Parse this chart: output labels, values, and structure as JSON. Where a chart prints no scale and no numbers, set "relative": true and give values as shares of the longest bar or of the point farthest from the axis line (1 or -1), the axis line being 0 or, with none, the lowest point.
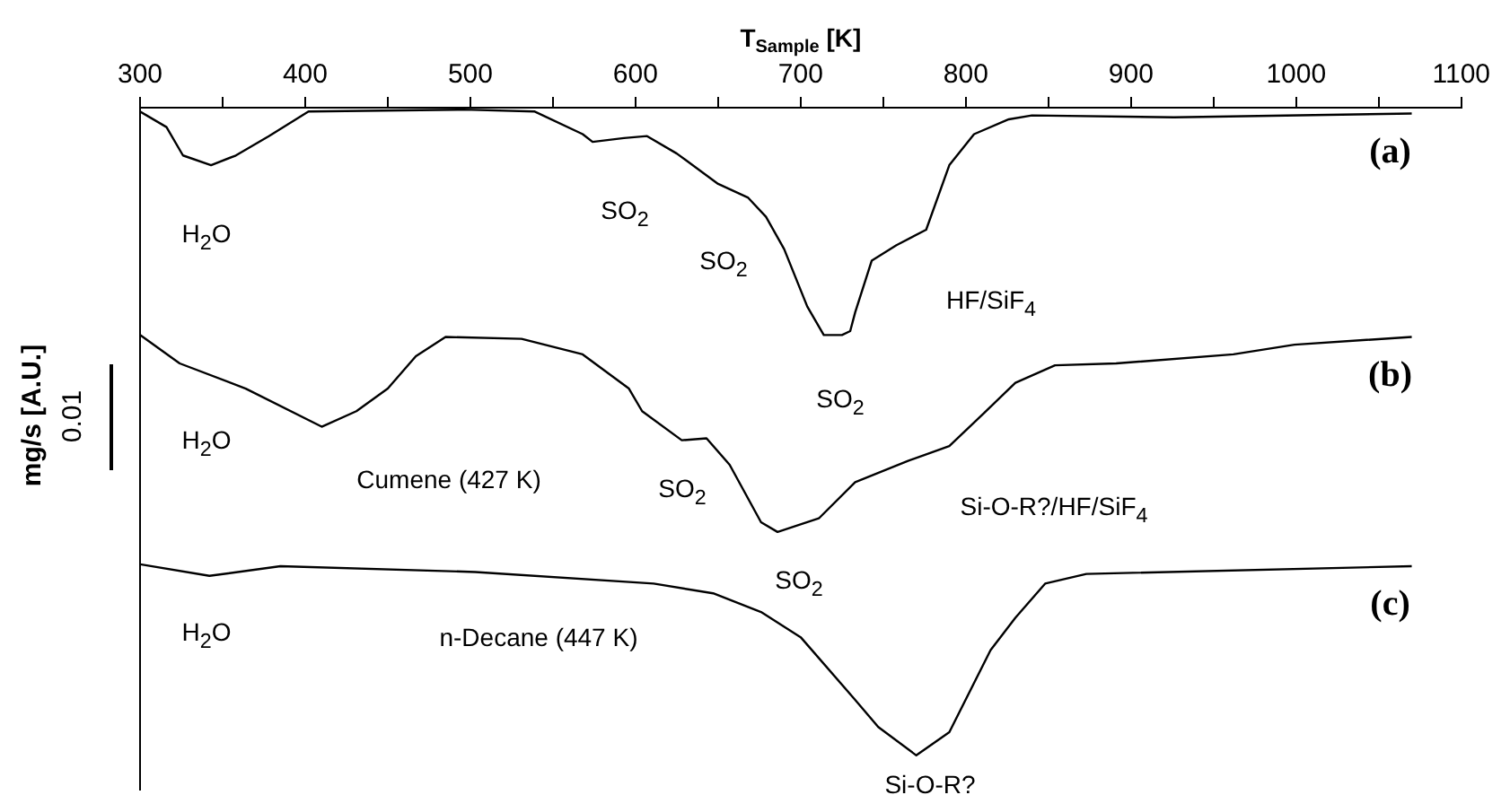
{
  "chart_data": {
    "type": "line",
    "relative": true,
    "xlabel": "T$_{Sample}$ [K]",
    "ylabel": "mg/s [A.U.]",
    "xlim": [
      300,
      1100
    ],
    "xticks": [
      300,
      {
        "value": 350,
        "label": null
      },
      400,
      {
        "value": 450,
        "label": null
      },
      500,
      {
        "value": 550,
        "label": null
      },
      600,
      {
        "value": 650,
        "label": null
      },
      700,
      {
        "value": 750,
        "label": null
      },
      800,
      {
        "value": 850,
        "label": null
      },
      900,
      {
        "value": 950,
        "label": null
      },
      1000,
      {
        "value": 1050,
        "label": null
      },
      1100
    ],
    "grid": false,
    "legend": false,
    "marker": "none",
    "line_style": "solid",
    "series": [
      {
        "name": "(a)",
        "color": "#000000",
        "x": [
          300,
          316,
          326,
          343,
          358,
          378,
          402,
          496,
          539,
          568,
          574,
          593,
          607,
          625,
          650,
          668,
          679,
          690,
          704,
          714,
          725,
          730,
          733,
          743,
          758,
          776,
          790,
          805,
          826,
          840,
          926,
          1070
        ],
        "values": [
          0.997,
          0.973,
          0.929,
          0.914,
          0.929,
          0.959,
          0.997,
          1.0,
          0.997,
          0.962,
          0.95,
          0.956,
          0.959,
          0.932,
          0.885,
          0.864,
          0.834,
          0.784,
          0.695,
          0.651,
          0.651,
          0.657,
          0.686,
          0.766,
          0.79,
          0.814,
          0.914,
          0.962,
          0.985,
          0.991,
          0.988,
          0.994
        ]
      },
      {
        "name": "(b)",
        "color": "#000000",
        "x": [
          300,
          324,
          364,
          410,
          431,
          450,
          467,
          485,
          531,
          568,
          596,
          604,
          628,
          643,
          657,
          676,
          686,
          711,
          733,
          765,
          790,
          811,
          830,
          854,
          891,
          962,
          999,
          1070
        ],
        "values": [
          0.651,
          0.607,
          0.568,
          0.509,
          0.533,
          0.568,
          0.618,
          0.648,
          0.645,
          0.621,
          0.568,
          0.533,
          0.488,
          0.491,
          0.45,
          0.361,
          0.346,
          0.367,
          0.423,
          0.456,
          0.479,
          0.53,
          0.577,
          0.604,
          0.607,
          0.621,
          0.636,
          0.648
        ]
      },
      {
        "name": "(c)",
        "color": "#000000",
        "x": [
          300,
          342,
          385,
          503,
          611,
          647,
          676,
          700,
          733,
          747,
          770,
          790,
          815,
          830,
          848,
          873,
          1070
        ],
        "values": [
          0.296,
          0.278,
          0.293,
          0.284,
          0.266,
          0.251,
          0.222,
          0.183,
          0.086,
          0.044,
          0.0,
          0.036,
          0.163,
          0.213,
          0.266,
          0.281,
          0.293
        ]
      }
    ],
    "annotations": [
      "H$_{2}$O",
      "SO$_{2}$",
      "SO$_{2}$",
      "HF/SiF$_{4}$",
      "SO$_{2}$",
      "H$_{2}$O",
      "Cumene (427 K)",
      "SO$_{2}$",
      "SO$_{2}$",
      "Si-O-R?/HF/SiF$_{4}$",
      "H$_{2}$O",
      "n-Decane (447 K)",
      "Si-O-R?",
      "0.01"
    ]
  }
}
